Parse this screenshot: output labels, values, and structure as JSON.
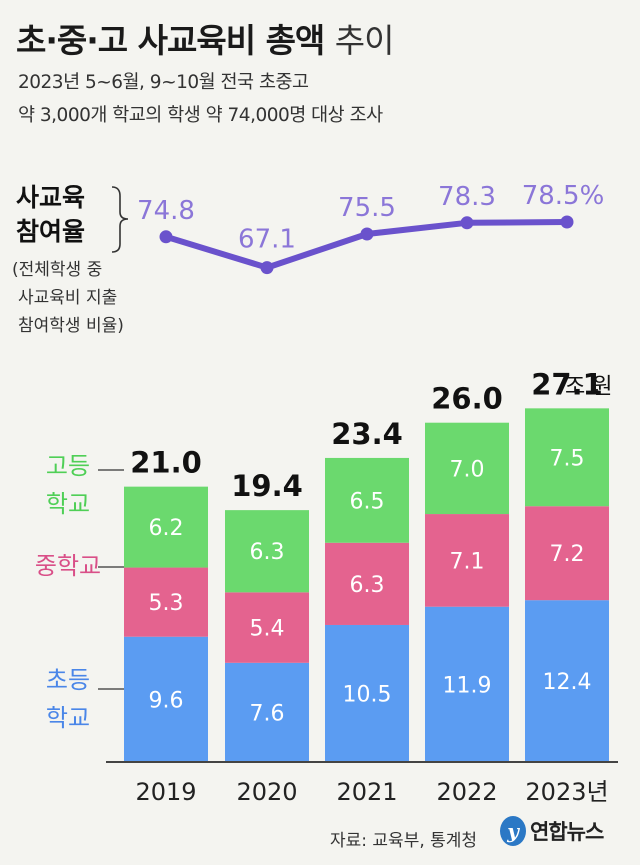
{
  "header": {
    "title_bold": "초·중·고 사교육비 총액",
    "title_light": "추이",
    "subtitle_line1": "2023년 5~6월, 9~10월 전국 초중고",
    "subtitle_line2": "약 3,000개 학교의 학생 약 74,000명 대상 조사"
  },
  "participation": {
    "label_line1": "사교육",
    "label_line2": "참여율",
    "note_lines": [
      "(전체학생 중",
      "사교육비 지출",
      "참여학생 비율)"
    ]
  },
  "footer": {
    "source": "자료: 교육부, 통계청",
    "logo_mark": "y",
    "logo_text": "연합뉴스"
  },
  "chart_data": {
    "type": "bar",
    "stacked": true,
    "title": "초·중·고 사교육비 총액 추이",
    "categories": [
      "2019",
      "2020",
      "2021",
      "2022",
      "2023년"
    ],
    "series": [
      {
        "name": "초등 학교",
        "name_lines": [
          "초등",
          "학교"
        ],
        "color": "#5b9cf2",
        "values": [
          9.6,
          7.6,
          10.5,
          11.9,
          12.4
        ],
        "labels": [
          "9.6",
          "7.6",
          "10.5",
          "11.9",
          "12.4"
        ]
      },
      {
        "name": "중학교",
        "name_lines": [
          "중학교"
        ],
        "color": "#e4638f",
        "values": [
          5.3,
          5.4,
          6.3,
          7.1,
          7.2
        ],
        "labels": [
          "5.3",
          "5.4",
          "6.3",
          "7.1",
          "7.2"
        ]
      },
      {
        "name": "고등 학교",
        "name_lines": [
          "고등",
          "학교"
        ],
        "color": "#6bd96e",
        "values": [
          6.2,
          6.3,
          6.5,
          7.0,
          7.5
        ],
        "labels": [
          "6.2",
          "6.3",
          "6.5",
          "7.0",
          "7.5"
        ]
      }
    ],
    "totals": [
      21.0,
      19.4,
      23.4,
      26.0,
      27.1
    ],
    "total_labels": [
      "21.0",
      "19.4",
      "23.4",
      "26.0",
      "27.1"
    ],
    "total_unit": "조 원",
    "participation_rate": {
      "values": [
        74.8,
        67.1,
        75.5,
        78.3,
        78.5
      ],
      "labels": [
        "74.8",
        "67.1",
        "75.5",
        "78.3",
        "78.5%"
      ],
      "color": "#6a52cc",
      "label_color": "#8b76d8"
    },
    "ylim": [
      0,
      30
    ],
    "rate_ylim": [
      65,
      80
    ],
    "legend_colors": {
      "elementary": "#4a86e8",
      "middle": "#d94f88",
      "high": "#4fcf56"
    }
  }
}
